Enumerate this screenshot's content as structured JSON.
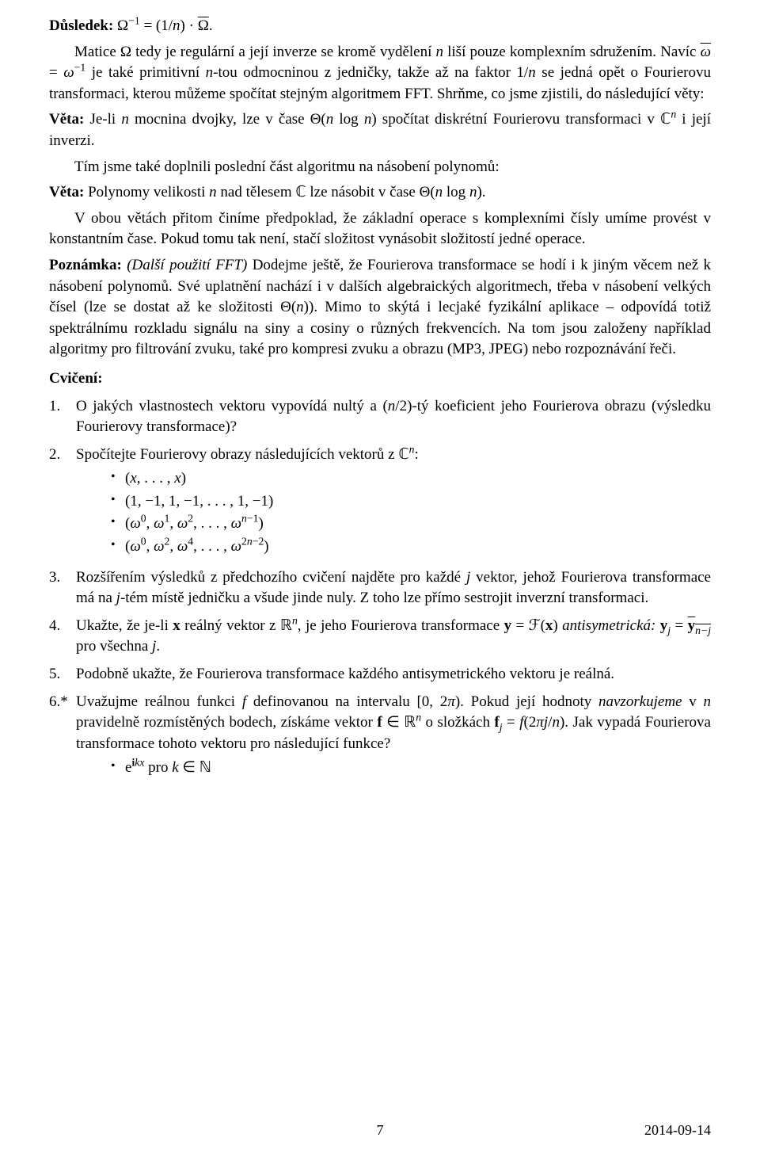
{
  "dusledek_label": "Důsledek:",
  "dusledek_formula": " Ω⁻¹ = (1/n) · Ω̄.",
  "p1": "Matice Ω tedy je regulární a její inverze se kromě vydělení n liší pouze komplexním sdružením. Navíc ω̄ = ω⁻¹ je také primitivní n-tou odmocninou z jedničky, takže až na faktor 1/n se jedná opět o Fourierovu transformaci, kterou můžeme spočítat stejným algoritmem FFT. Shrňme, co jsme zjistili, do následující věty:",
  "veta1_label": "Věta:",
  "veta1_body": " Je-li n mocnina dvojky, lze v čase Θ(n log n) spočítat diskrétní Fourierovu transformaci v ℂⁿ i její inverzi.",
  "p2": "Tím jsme také doplnili poslední část algoritmu na násobení polynomů:",
  "veta2_label": "Věta:",
  "veta2_body": " Polynomy velikosti n nad tělesem ℂ lze násobit v čase Θ(n log n).",
  "p3": "V obou větách přitom činíme předpoklad, že základní operace s komplexními čísly umíme provést v konstantním čase. Pokud tomu tak není, stačí složitost vynásobit složitostí jedné operace.",
  "pozn_label": "Poznámka:",
  "pozn_italic": " (Další použití FFT)",
  "pozn_body": " Dodejme ještě, že Fourierova transformace se hodí i k jiným věcem než k násobení polynomů. Své uplatnění nachází i v dalších algebraických algoritmech, třeba v násobení velkých čísel (lze se dostat až ke složitosti Θ(n)). Mimo to skýtá i lecjaké fyzikální aplikace – odpovídá totiž spektrálnímu rozkladu signálu na siny a cosiny o různých frekvencích. Na tom jsou založeny například algoritmy pro filtrování zvuku, také pro kompresi zvuku a obrazu (MP3, JPEG) nebo rozpoznávání řeči.",
  "cviceni_label": "Cvičení:",
  "ex1_num": "1.",
  "ex1": "O jakých vlastnostech vektoru vypovídá nultý a (n/2)-tý koeficient jeho Fourierova obrazu (výsledku Fourierovy transformace)?",
  "ex2_num": "2.",
  "ex2": "Spočítejte Fourierovy obrazy následujících vektorů z ℂⁿ:",
  "ex2_b1": "(x, . . . , x)",
  "ex2_b2": "(1, −1, 1, −1, . . . , 1, −1)",
  "ex2_b3": "(ω⁰, ω¹, ω², . . . , ωⁿ⁻¹)",
  "ex2_b4": "(ω⁰, ω², ω⁴, . . . , ω²ⁿ⁻²)",
  "ex3_num": "3.",
  "ex3": "Rozšířením výsledků z předchozího cvičení najděte pro každé j vektor, jehož Fourierova transformace má na j-tém místě jedničku a všude jinde nuly. Z toho lze přímo sestrojit inverzní transformaci.",
  "ex4_num": "4.",
  "ex4_a": "Ukažte, že je-li ",
  "ex4_b": " reálný vektor z ℝⁿ, je jeho Fourierova transformace ",
  "ex4_c": " = ℱ(",
  "ex4_d": ") ",
  "ex4_e": "antisymetrická:",
  "ex4_f": " ",
  "ex4_g": " = ",
  "ex4_h": " pro všechna j.",
  "ex5_num": "5.",
  "ex5": "Podobně ukažte, že Fourierova transformace každého antisymetrického vektoru je reálná.",
  "ex6_num": "6.*",
  "ex6_a": "Uvažujme reálnou funkci f definovanou na intervalu [0, 2π). Pokud její hodnoty ",
  "ex6_b": "navzorkujeme",
  "ex6_c": " v n pravidelně rozmistěných bodech, získáme vektor ",
  "ex6_d": " ∈ ℝⁿ o složkách ",
  "ex6_e": " = f(2πj/n). Jak vypadá Fourierova transformace tohoto vektoru pro následující funkce?",
  "ex6_b1_pre": "e",
  "ex6_b1_sup": "ikx",
  "ex6_b1_post": " pro k ∈ ℕ",
  "page_num": "7",
  "page_date": "2014-09-14"
}
